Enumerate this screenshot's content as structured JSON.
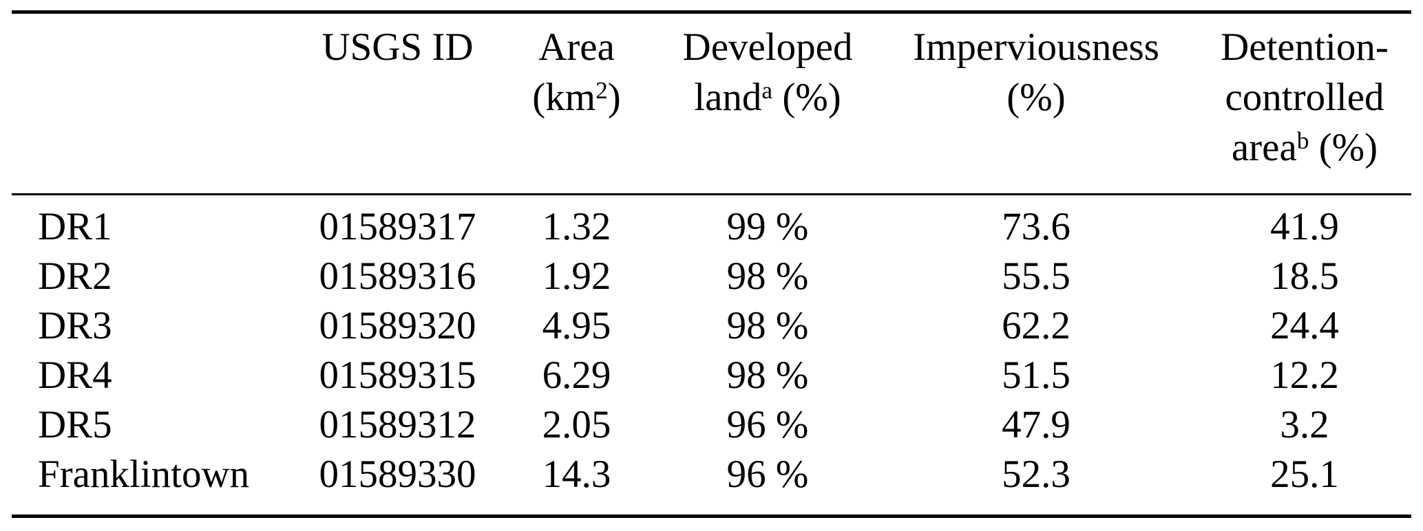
{
  "page": {
    "background_color": "#ffffff",
    "text_color": "#000000",
    "rule_color": "#000000"
  },
  "table": {
    "description": "Watershed characteristics table",
    "columns": [
      {
        "key": "site",
        "label": ""
      },
      {
        "key": "usgs_id",
        "label": "USGS ID"
      },
      {
        "key": "area_km2",
        "label": "Area\n(km^{2})"
      },
      {
        "key": "developed_land_pct",
        "label": "Developed\nland^{a} (%)"
      },
      {
        "key": "imperviousness_pct",
        "label": "Imperviousness\n(%)"
      },
      {
        "key": "detention_controlled_area_pct",
        "label": "Detention-\ncontrolled\narea^{b} (%)"
      }
    ],
    "rows": [
      {
        "site": "DR1",
        "usgs_id": "01589317",
        "area_km2": "1.32",
        "developed_land_pct": "99 %",
        "imperviousness_pct": "73.6",
        "detention_controlled_area_pct": "41.9"
      },
      {
        "site": "DR2",
        "usgs_id": "01589316",
        "area_km2": "1.92",
        "developed_land_pct": "98 %",
        "imperviousness_pct": "55.5",
        "detention_controlled_area_pct": "18.5"
      },
      {
        "site": "DR3",
        "usgs_id": "01589320",
        "area_km2": "4.95",
        "developed_land_pct": "98 %",
        "imperviousness_pct": "62.2",
        "detention_controlled_area_pct": "24.4"
      },
      {
        "site": "DR4",
        "usgs_id": "01589315",
        "area_km2": "6.29",
        "developed_land_pct": "98 %",
        "imperviousness_pct": "51.5",
        "detention_controlled_area_pct": "12.2"
      },
      {
        "site": "DR5",
        "usgs_id": "01589312",
        "area_km2": "2.05",
        "developed_land_pct": "96 %",
        "imperviousness_pct": "47.9",
        "detention_controlled_area_pct": "3.2"
      },
      {
        "site": "Franklintown",
        "usgs_id": "01589330",
        "area_km2": "14.3",
        "developed_land_pct": "96 %",
        "imperviousness_pct": "52.3",
        "detention_controlled_area_pct": "25.1"
      }
    ]
  },
  "chart_data": {
    "type": "table",
    "title": "",
    "columns": [
      "",
      "USGS ID",
      "Area (km2)",
      "Developed land a (%)",
      "Imperviousness (%)",
      "Detention-controlled area b (%)"
    ],
    "rows": [
      [
        "DR1",
        "01589317",
        1.32,
        99,
        73.6,
        41.9
      ],
      [
        "DR2",
        "01589316",
        1.92,
        98,
        55.5,
        18.5
      ],
      [
        "DR3",
        "01589320",
        4.95,
        98,
        62.2,
        24.4
      ],
      [
        "DR4",
        "01589315",
        6.29,
        98,
        51.5,
        12.2
      ],
      [
        "DR5",
        "01589312",
        2.05,
        96,
        47.9,
        3.2
      ],
      [
        "Franklintown",
        "01589330",
        14.3,
        96,
        52.3,
        25.1
      ]
    ]
  }
}
